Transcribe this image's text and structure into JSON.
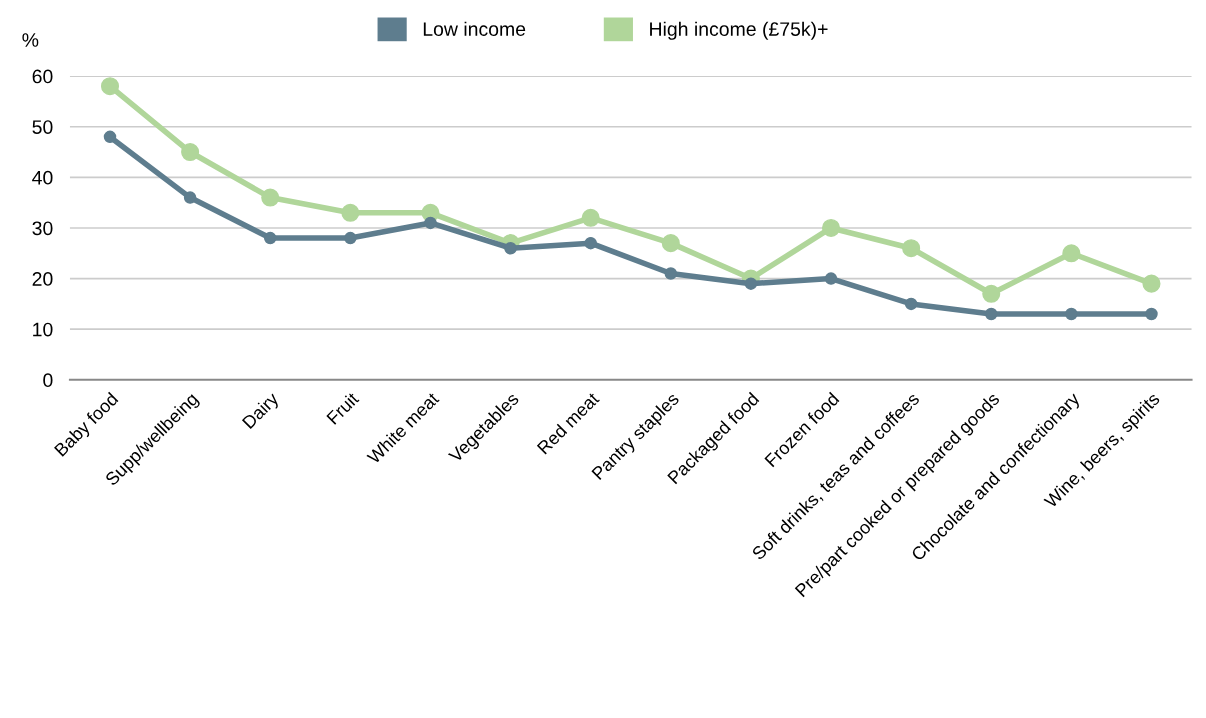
{
  "chart_data": {
    "type": "line",
    "ylabel": "%",
    "categories": [
      "Baby food",
      "Supp/wellbeing",
      "Dairy",
      "Fruit",
      "White meat",
      "Vegetables",
      "Red meat",
      "Pantry staples",
      "Packaged food",
      "Frozen food",
      "Soft drinks, teas and coffees",
      "Pre/part cooked or prepared goods",
      "Chocolate and confectionary",
      "Wine, beers, spirits"
    ],
    "series": [
      {
        "name": "Low income",
        "color": "#5e7d8e",
        "values": [
          48,
          36,
          28,
          28,
          31,
          26,
          27,
          21,
          19,
          20,
          15,
          13,
          13,
          13
        ]
      },
      {
        "name": "High income (£75k)+",
        "color": "#b0d69a",
        "values": [
          58,
          45,
          36,
          33,
          33,
          27,
          32,
          27,
          20,
          30,
          26,
          17,
          25,
          19
        ]
      }
    ],
    "ylim": [
      0,
      60
    ],
    "yticks": [
      0,
      10,
      20,
      30,
      40,
      50,
      60
    ],
    "grid": "y",
    "legend": "top",
    "marker": "circle",
    "line_style": "solid"
  }
}
